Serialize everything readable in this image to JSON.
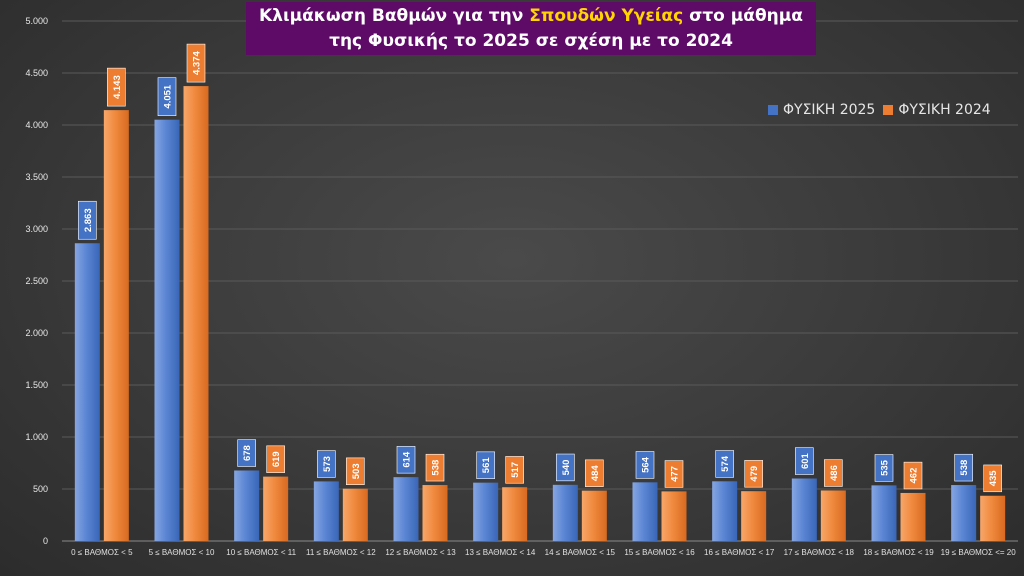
{
  "chart_data": {
    "type": "bar",
    "title_parts": [
      "Κλιμάκωση Βαθμών για την ",
      "Σπουδών Υγείας",
      " στο μάθημα"
    ],
    "title_line2": "της Φυσικής το 2025 σε σχέση με το 2024",
    "categories": [
      "0 ≤ ΒΑΘΜΟΣ < 5",
      "5 ≤ ΒΑΘΜΟΣ < 10",
      "10 ≤ ΒΑΘΜΟΣ < 11",
      "11 ≤ ΒΑΘΜΟΣ < 12",
      "12 ≤ ΒΑΘΜΟΣ < 13",
      "13 ≤ ΒΑΘΜΟΣ < 14",
      "14 ≤ ΒΑΘΜΟΣ < 15",
      "15 ≤ ΒΑΘΜΟΣ < 16",
      "16 ≤ ΒΑΘΜΟΣ < 17",
      "17 ≤ ΒΑΘΜΟΣ < 18",
      "18 ≤ ΒΑΘΜΟΣ < 19",
      "19 ≤ ΒΑΘΜΟΣ <= 20"
    ],
    "series": [
      {
        "name": "ΦΥΣΙΚΗ 2025",
        "color": "#4472c4",
        "values": [
          2863,
          4051,
          678,
          573,
          614,
          561,
          540,
          564,
          574,
          601,
          535,
          538
        ],
        "labels": [
          "2.863",
          "4.051",
          "678",
          "573",
          "614",
          "561",
          "540",
          "564",
          "574",
          "601",
          "535",
          "538"
        ]
      },
      {
        "name": "ΦΥΣΙΚΗ 2024",
        "color": "#ed7d31",
        "values": [
          4143,
          4374,
          619,
          503,
          538,
          517,
          484,
          477,
          479,
          486,
          462,
          435
        ],
        "labels": [
          "4.143",
          "4.374",
          "619",
          "503",
          "538",
          "517",
          "484",
          "477",
          "479",
          "486",
          "462",
          "435"
        ]
      }
    ],
    "ylim": [
      0,
      5000
    ],
    "yticks": [
      0,
      500,
      1000,
      1500,
      2000,
      2500,
      3000,
      3500,
      4000,
      4500,
      5000
    ],
    "ytick_labels": [
      "0",
      "500",
      "1.000",
      "1.500",
      "2.000",
      "2.500",
      "3.000",
      "3.500",
      "4.000",
      "4.500",
      "5.000"
    ],
    "grid": true,
    "legend_position": "top-right"
  }
}
